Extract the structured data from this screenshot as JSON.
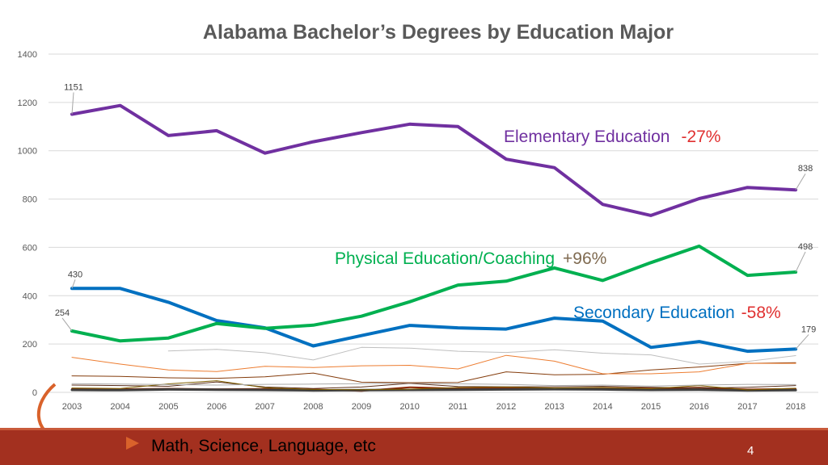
{
  "chart_data": {
    "type": "line",
    "title": "Alabama Bachelor’s Degrees by Education Major",
    "categories": [
      "2003",
      "2004",
      "2005",
      "2006",
      "2007",
      "2008",
      "2009",
      "2010",
      "2011",
      "2012",
      "2013",
      "2014",
      "2015",
      "2016",
      "2017",
      "2018"
    ],
    "ylim": [
      0,
      1400
    ],
    "yticks": [
      0,
      200,
      400,
      600,
      800,
      1000,
      1200,
      1400
    ],
    "grid": true,
    "series": [
      {
        "name": "Elementary Education",
        "color": "#7030a0",
        "width": 4,
        "values": [
          1151,
          1187,
          1063,
          1083,
          990,
          1037,
          1075,
          1110,
          1100,
          965,
          930,
          778,
          732,
          802,
          848,
          838
        ]
      },
      {
        "name": "Physical Education/Coaching",
        "color": "#00b050",
        "width": 4,
        "values": [
          254,
          213,
          225,
          285,
          265,
          278,
          315,
          375,
          444,
          460,
          515,
          463,
          537,
          605,
          484,
          498
        ]
      },
      {
        "name": "Secondary Education",
        "color": "#0070c0",
        "width": 4,
        "values": [
          430,
          430,
          373,
          297,
          267,
          192,
          235,
          277,
          267,
          262,
          307,
          295,
          186,
          210,
          170,
          179
        ]
      },
      {
        "color": "#bfbfbf",
        "width": 1,
        "values": [
          null,
          null,
          171,
          178,
          164,
          134,
          186,
          183,
          170,
          165,
          176,
          162,
          155,
          117,
          128,
          152
        ]
      },
      {
        "color": "#ed7d31",
        "width": 1,
        "values": [
          145,
          117,
          93,
          86,
          108,
          103,
          110,
          112,
          97,
          153,
          129,
          77,
          77,
          85,
          120,
          120
        ]
      },
      {
        "color": "#843c0c",
        "width": 1,
        "values": [
          68,
          66,
          60,
          58,
          64,
          80,
          42,
          40,
          41,
          85,
          73,
          75,
          93,
          105,
          120,
          123
        ]
      },
      {
        "color": "#a9a9a9",
        "width": 1,
        "values": [
          36,
          34,
          32,
          30,
          33,
          34,
          36,
          38,
          35,
          33,
          28,
          30,
          26,
          30,
          33,
          32
        ]
      },
      {
        "color": "#7f6000",
        "width": 1,
        "values": [
          18,
          16,
          35,
          48,
          19,
          12,
          11,
          13,
          20,
          22,
          18,
          20,
          15,
          28,
          10,
          17
        ]
      },
      {
        "color": "#5a2e1a",
        "width": 1,
        "values": [
          30,
          28,
          25,
          43,
          22,
          16,
          22,
          37,
          24,
          23,
          23,
          25,
          21,
          18,
          21,
          28
        ]
      },
      {
        "color": "#404040",
        "width": 3,
        "values": [
          10,
          9,
          12,
          11,
          10,
          8,
          9,
          10,
          11,
          12,
          13,
          12,
          10,
          11,
          8,
          9
        ]
      },
      {
        "color": "#8b2500",
        "width": 2,
        "values": [
          14,
          13,
          15,
          13,
          14,
          12,
          6,
          21,
          16,
          18,
          15,
          18,
          16,
          19,
          12,
          14
        ]
      }
    ],
    "data_labels": [
      {
        "series": 0,
        "index": 0,
        "text": "1151"
      },
      {
        "series": 0,
        "index": 15,
        "text": "838"
      },
      {
        "series": 2,
        "index": 0,
        "text": "430"
      },
      {
        "series": 1,
        "index": 0,
        "text": "254"
      },
      {
        "series": 1,
        "index": 15,
        "text": "498"
      },
      {
        "series": 2,
        "index": 15,
        "text": "179"
      }
    ],
    "annotations": [
      {
        "label": "Elementary Education",
        "change": "-27%",
        "label_color": "#7030a0",
        "change_color": "#e03030"
      },
      {
        "label": "Physical Education/Coaching",
        "change": "+96%",
        "label_color": "#00b050",
        "change_color": "#7f6a50"
      },
      {
        "label": "Secondary Education",
        "change": "-58%",
        "label_color": "#0070c0",
        "change_color": "#e03030"
      }
    ]
  },
  "footer": {
    "caption": "Math, Science, Language, etc",
    "page_number": "4"
  }
}
